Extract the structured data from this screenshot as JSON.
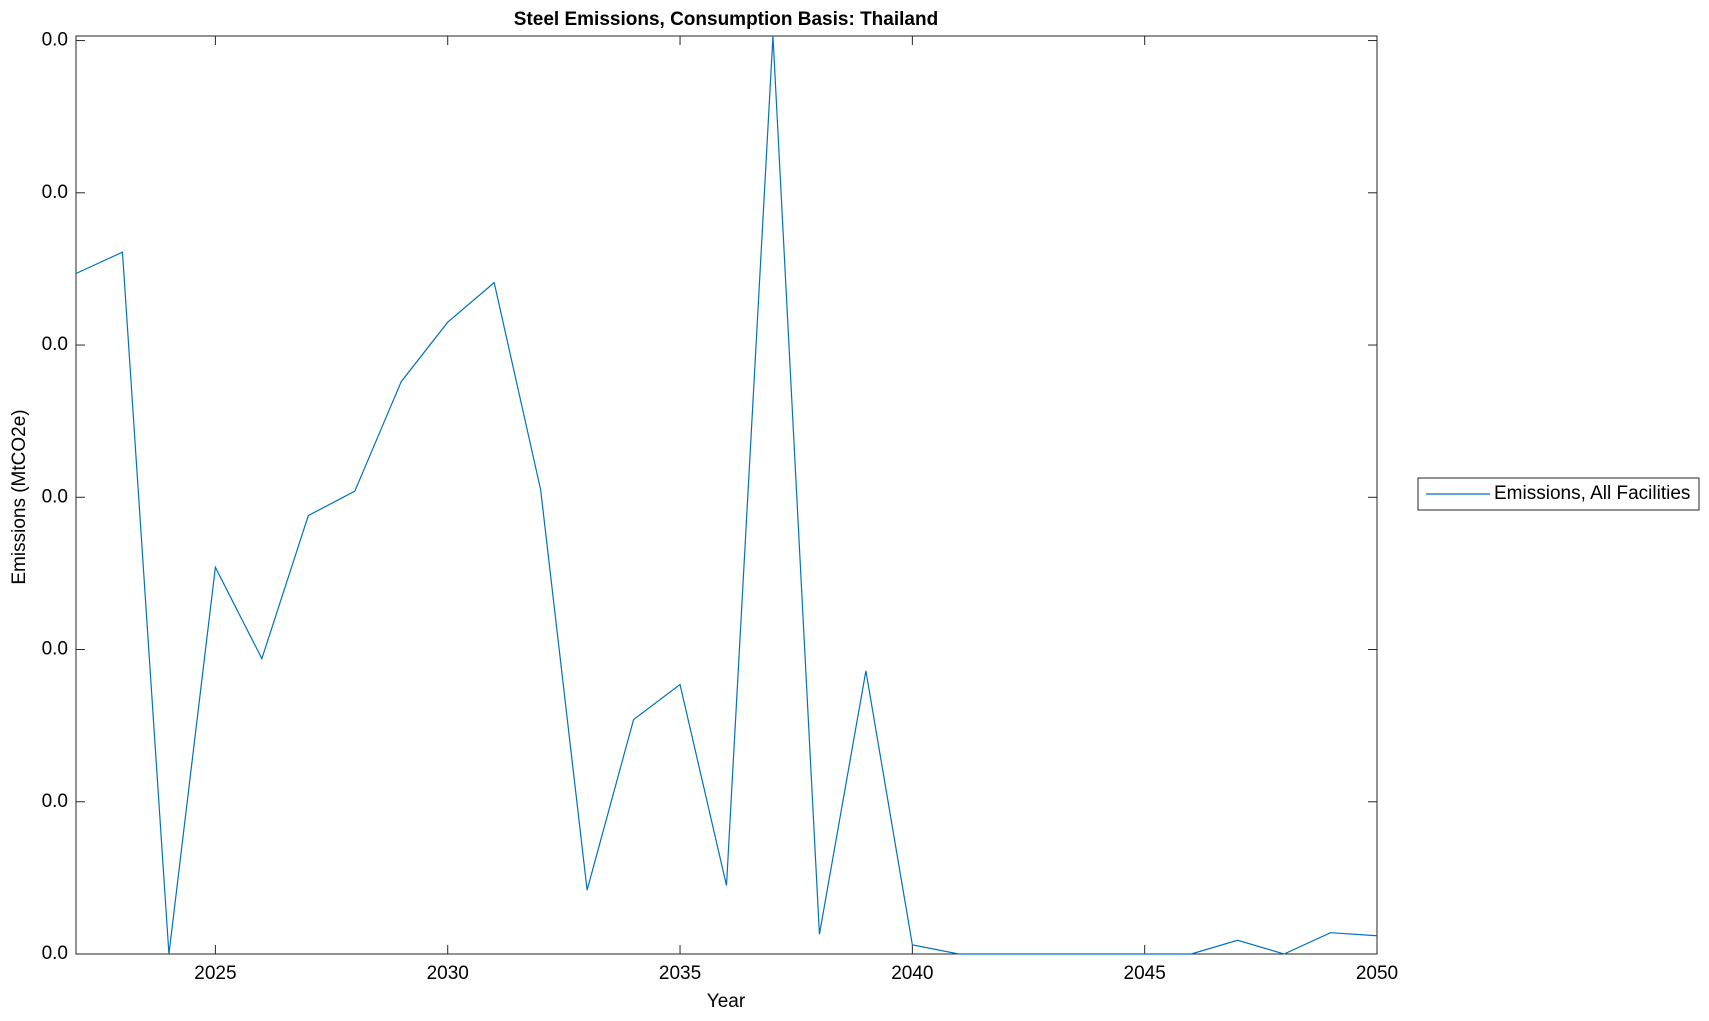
{
  "chart_data": {
    "type": "line",
    "title": "Steel Emissions, Consumption Basis: Thailand",
    "xlabel": "Year",
    "ylabel": "Emissions (MtCO2e)",
    "x": [
      2022,
      2023,
      2024,
      2025,
      2026,
      2027,
      2028,
      2029,
      2030,
      2031,
      2032,
      2033,
      2034,
      2035,
      2036,
      2037,
      2038,
      2039,
      2040,
      2041,
      2042,
      2043,
      2044,
      2045,
      2046,
      2047,
      2048,
      2049,
      2050
    ],
    "series": [
      {
        "name": "Emissions, All Facilities",
        "color": "#0072bd",
        "values": [
          0.00447,
          0.00461,
          0,
          0.00254,
          0.00194,
          0.00288,
          0.00304,
          0.00376,
          0.00415,
          0.00441,
          0.00305,
          0.00042,
          0.00154,
          0.00177,
          0.00045,
          0.00603,
          0.00013,
          0.00186,
          6e-05,
          0,
          0,
          0,
          0,
          0,
          0,
          9e-05,
          0,
          0.00014,
          0.00012
        ]
      }
    ],
    "xlim": [
      2022,
      2050
    ],
    "xticks": [
      2025,
      2030,
      2035,
      2040,
      2045,
      2050
    ],
    "ylim": [
      0,
      0.00603
    ],
    "yticks": [
      {
        "value": 0,
        "label": "0.0"
      },
      {
        "value": 0.001,
        "label": "0.0"
      },
      {
        "value": 0.002,
        "label": "0.0"
      },
      {
        "value": 0.003,
        "label": "0.0"
      },
      {
        "value": 0.004,
        "label": "0.0"
      },
      {
        "value": 0.005,
        "label": "0.0"
      },
      {
        "value": 0.006,
        "label": "0.0"
      }
    ],
    "grid": false,
    "legend": "outside-right"
  }
}
